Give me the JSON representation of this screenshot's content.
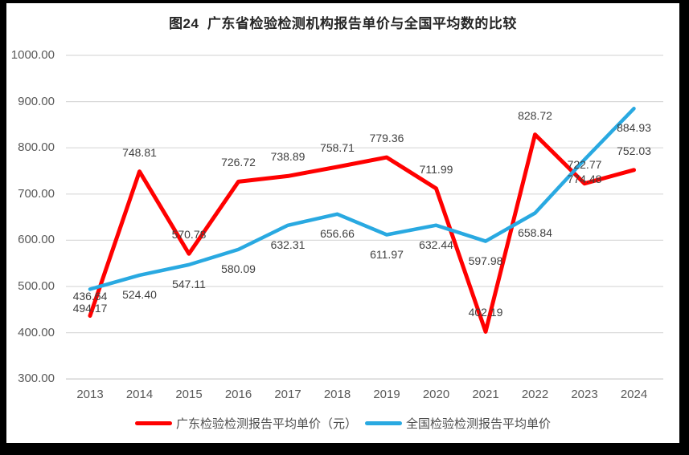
{
  "chart_data": {
    "type": "line",
    "title": "图24  广东省检验检测机构报告单价与全国平均数的比较",
    "categories": [
      "2013",
      "2014",
      "2015",
      "2016",
      "2017",
      "2018",
      "2019",
      "2020",
      "2021",
      "2022",
      "2023",
      "2024"
    ],
    "series": [
      {
        "name": "广东检验检测报告平均单价（元）",
        "color": "#FF0000",
        "stroke_width": 5,
        "label_position": "above",
        "values": [
          436.64,
          748.81,
          570.78,
          726.72,
          738.89,
          758.71,
          779.36,
          711.99,
          402.19,
          828.72,
          722.77,
          752.03
        ]
      },
      {
        "name": "全国检验检测报告平均单价",
        "color": "#29A9E1",
        "stroke_width": 4.5,
        "label_position": "below",
        "values": [
          494.17,
          524.4,
          547.11,
          580.09,
          632.31,
          656.66,
          611.97,
          632.44,
          597.98,
          658.84,
          774.48,
          884.93
        ]
      }
    ],
    "yticks": [
      "1000.00",
      "900.00",
      "800.00",
      "700.00",
      "600.00",
      "500.00",
      "400.00",
      "300.00"
    ],
    "ylim": [
      300,
      1000
    ],
    "ytick_step": 100,
    "xlabel": "",
    "ylabel": "",
    "grid": true,
    "grid_color": "#D9D9D9",
    "axis_line_color": "#C3C3C3",
    "legend_position": "bottom"
  }
}
